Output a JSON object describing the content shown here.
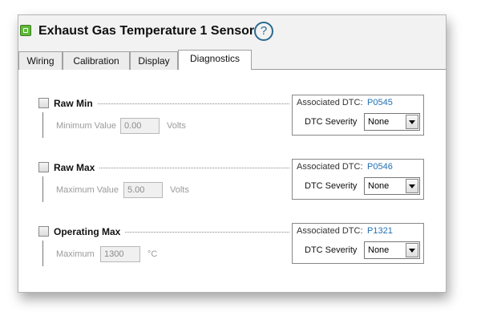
{
  "header": {
    "title": "Exhaust Gas Temperature 1 Sensor",
    "help": "?"
  },
  "tabs": [
    {
      "label": "Wiring",
      "selected": false
    },
    {
      "label": "Calibration",
      "selected": false
    },
    {
      "label": "Display",
      "selected": false
    },
    {
      "label": "Diagnostics",
      "selected": true
    }
  ],
  "sections": [
    {
      "label": "Raw Min",
      "checked": false,
      "field_label": "Minimum Value",
      "field_value": "0.00",
      "unit": "Volts",
      "dtc_label": "Associated DTC:",
      "dtc_code": "P0545",
      "severity_label": "DTC Severity",
      "severity": "None"
    },
    {
      "label": "Raw Max",
      "checked": false,
      "field_label": "Maximum Value",
      "field_value": "5.00",
      "unit": "Volts",
      "dtc_label": "Associated DTC:",
      "dtc_code": "P0546",
      "severity_label": "DTC Severity",
      "severity": "None"
    },
    {
      "label": "Operating Max",
      "checked": false,
      "field_label": "Maximum",
      "field_value": "1300",
      "unit": "°C",
      "dtc_label": "Associated DTC:",
      "dtc_code": "P1321",
      "severity_label": "DTC Severity",
      "severity": "None"
    }
  ]
}
